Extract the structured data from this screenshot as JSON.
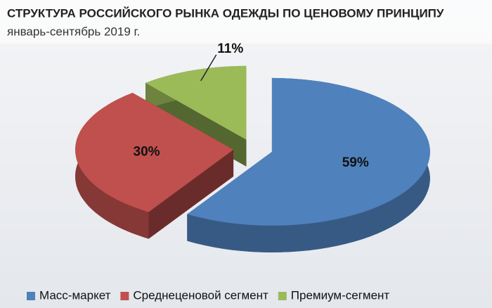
{
  "chart_data": {
    "type": "pie",
    "title": "СТРУКТУРА РОССИЙСКОГО РЫНКА ОДЕЖДЫ ПО ЦЕНОВОМУ ПРИНЦИПУ",
    "subtitle": "январь-сентябрь 2019 г.",
    "categories": [
      "Масс-маркет",
      "Среднеценовой сегмент",
      "Премиум-сегмент"
    ],
    "values": [
      59,
      30,
      11
    ],
    "value_labels": [
      "59%",
      "30%",
      "11%"
    ],
    "colors": [
      "#4f81bd",
      "#c0504d",
      "#9bbb59"
    ],
    "legend": "bottom"
  }
}
